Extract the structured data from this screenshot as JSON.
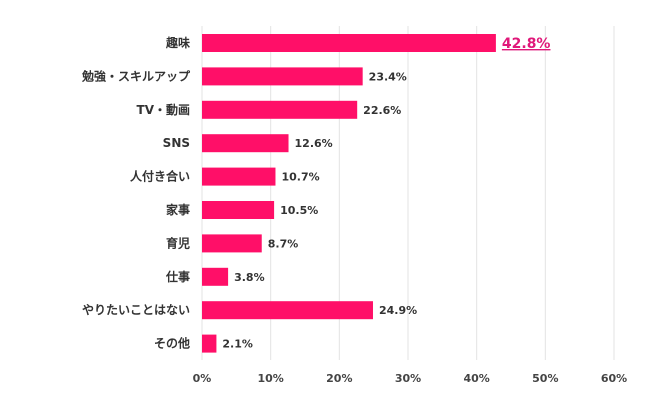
{
  "chart_data": {
    "type": "bar",
    "orientation": "horizontal",
    "categories": [
      "趣味",
      "勉強・スキルアップ",
      "TV・動画",
      "SNS",
      "人付き合い",
      "家事",
      "育児",
      "仕事",
      "やりたいことはない",
      "その他"
    ],
    "values": [
      42.8,
      23.4,
      22.6,
      12.6,
      10.7,
      10.5,
      8.7,
      3.8,
      24.9,
      2.1
    ],
    "value_labels": [
      "42.8%",
      "23.4%",
      "22.6%",
      "12.6%",
      "10.7%",
      "10.5%",
      "8.7%",
      "3.8%",
      "24.9%",
      "2.1%"
    ],
    "highlight_index": 0,
    "xlim": [
      0,
      60
    ],
    "xticks": [
      0,
      10,
      20,
      30,
      40,
      50,
      60
    ],
    "xtick_labels": [
      "0%",
      "10%",
      "20%",
      "30%",
      "40%",
      "50%",
      "60%"
    ],
    "grid": true,
    "bar_color": "#ff0f68",
    "highlight_label_color": "#e0187a"
  }
}
